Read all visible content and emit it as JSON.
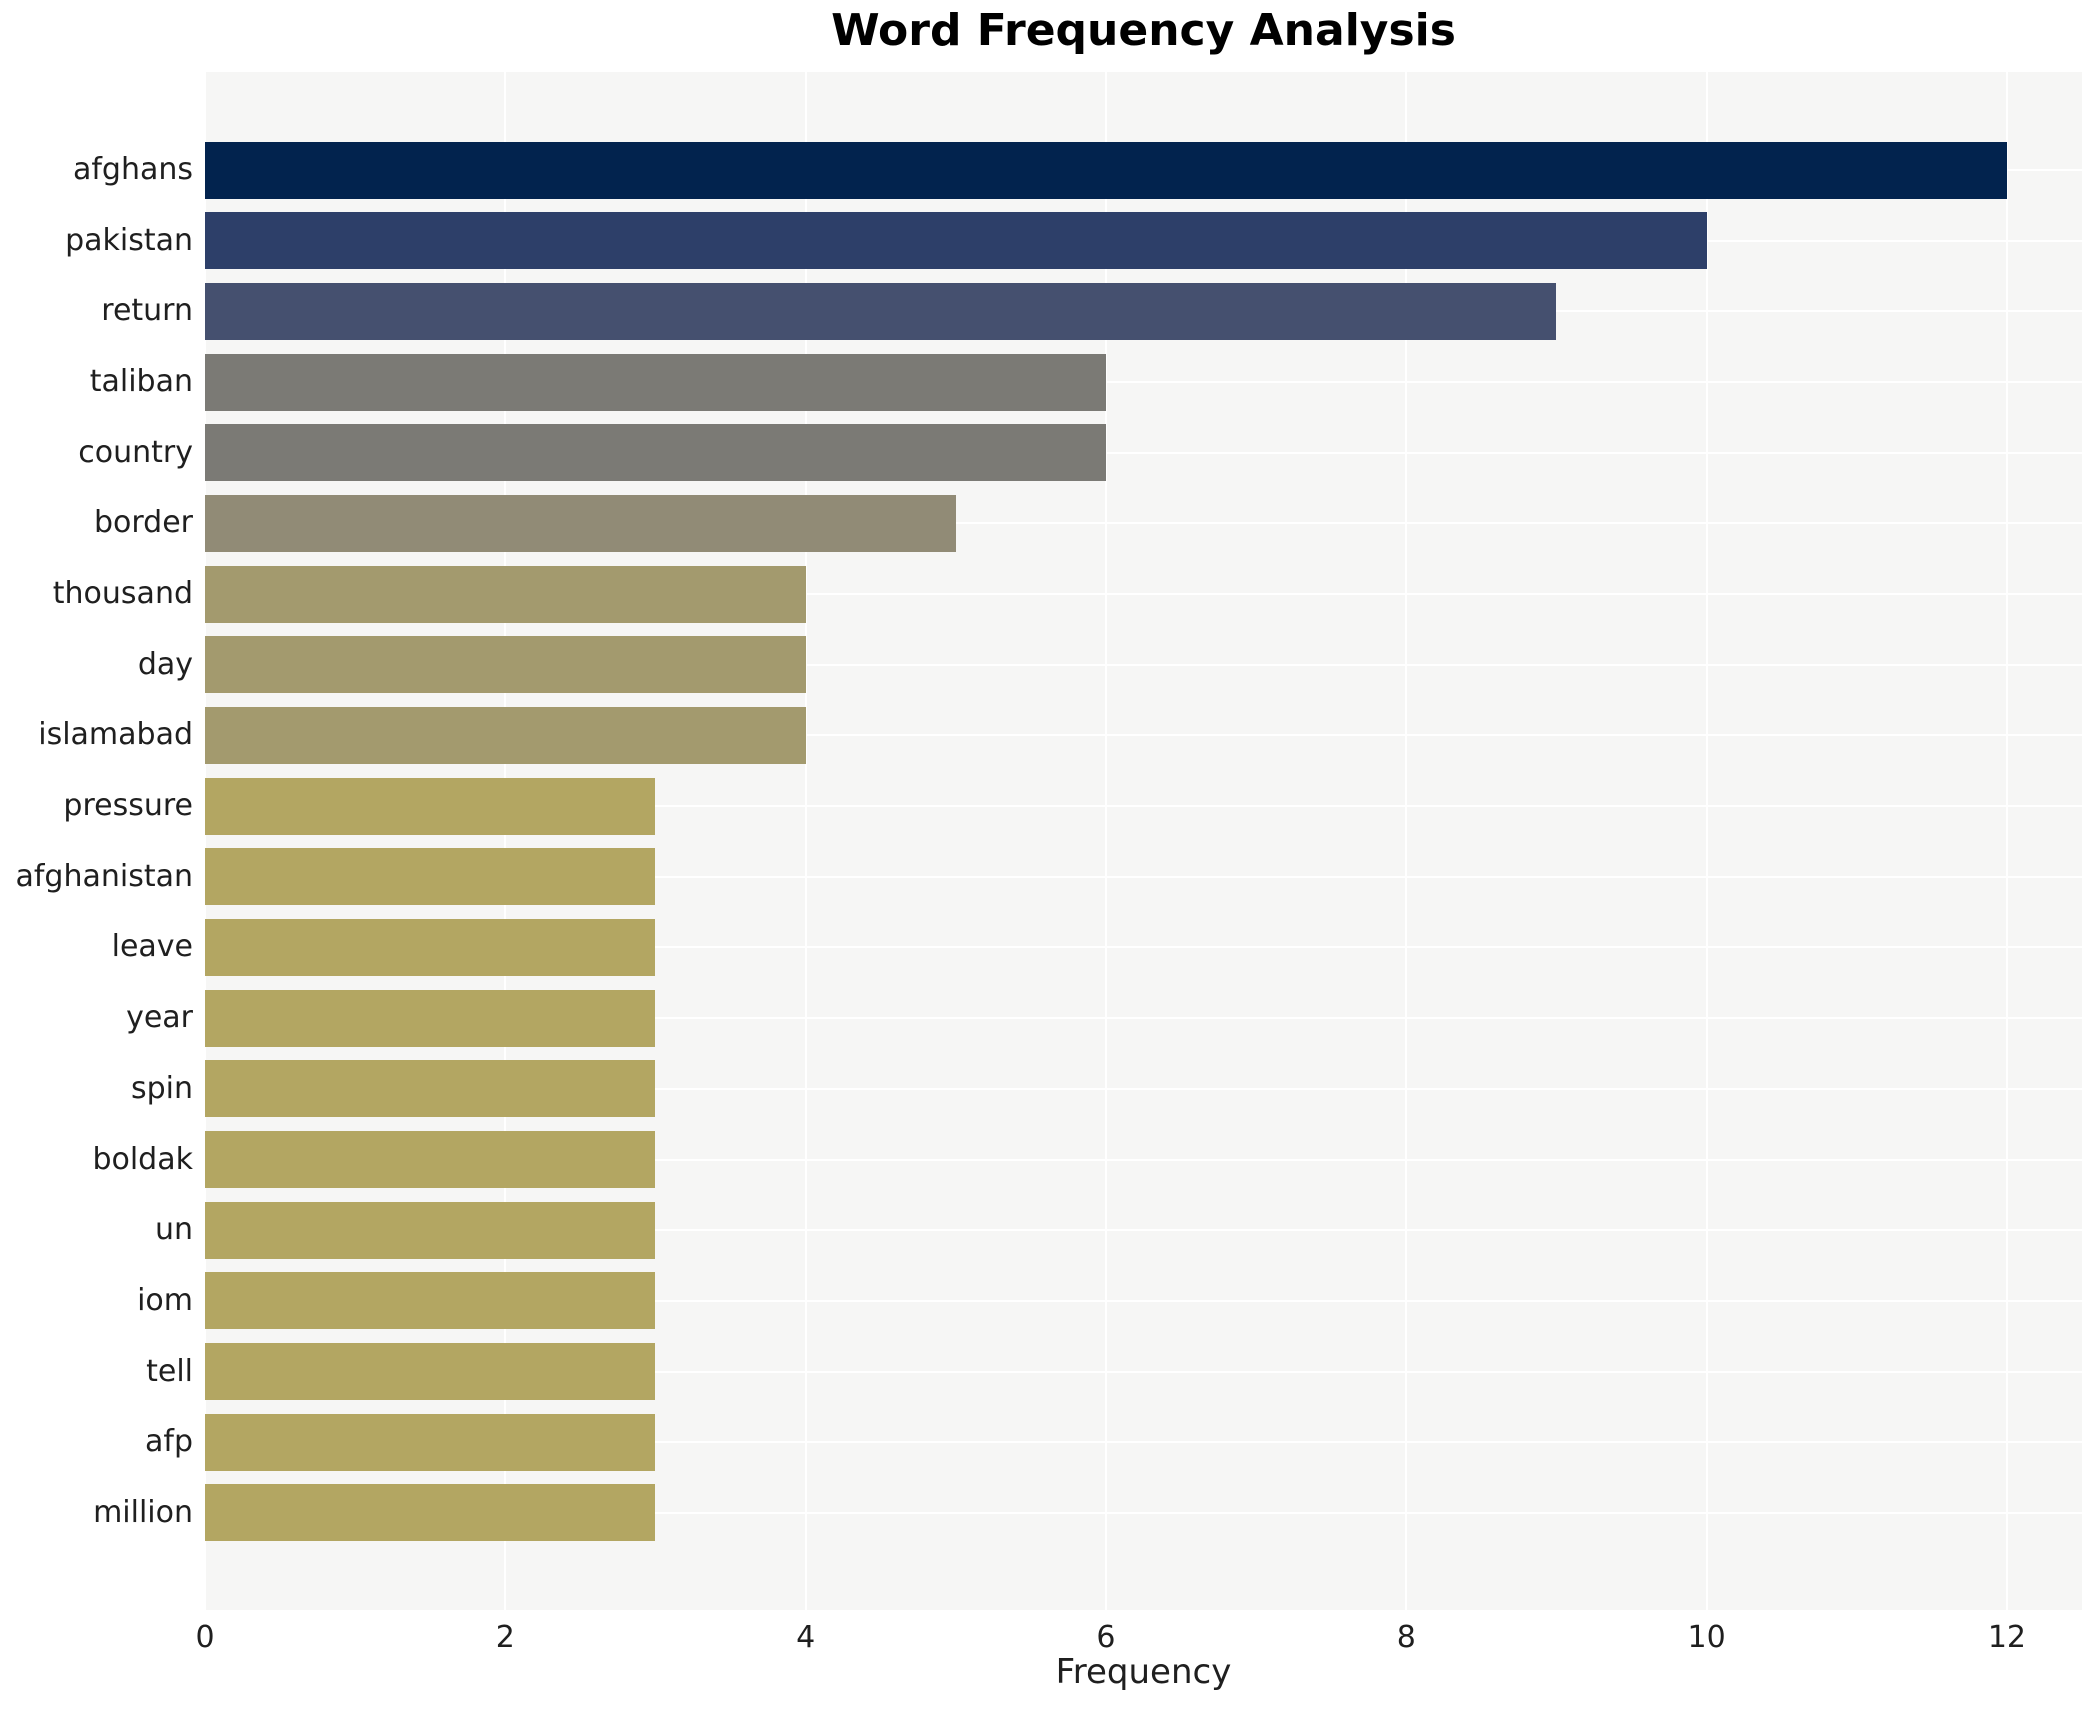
{
  "chart_data": {
    "type": "bar",
    "orientation": "horizontal",
    "title": "Word Frequency Analysis",
    "xlabel": "Frequency",
    "ylabel": "",
    "categories": [
      "afghans",
      "pakistan",
      "return",
      "taliban",
      "country",
      "border",
      "thousand",
      "day",
      "islamabad",
      "pressure",
      "afghanistan",
      "leave",
      "year",
      "spin",
      "boldak",
      "un",
      "iom",
      "tell",
      "afp",
      "million"
    ],
    "values": [
      12,
      10,
      9,
      6,
      6,
      5,
      4,
      4,
      4,
      3,
      3,
      3,
      3,
      3,
      3,
      3,
      3,
      3,
      3,
      3
    ],
    "bar_colors": [
      "#02234e",
      "#2d3f69",
      "#45506f",
      "#7b7a75",
      "#7b7a75",
      "#918b76",
      "#a39a6e",
      "#a39a6e",
      "#a39a6e",
      "#b3a662",
      "#b3a662",
      "#b3a662",
      "#b3a662",
      "#b3a662",
      "#b3a662",
      "#b3a662",
      "#b3a662",
      "#b3a662",
      "#b3a662",
      "#b3a662"
    ],
    "xlim": [
      0,
      12.5
    ],
    "xticks": [
      0,
      2,
      4,
      6,
      8,
      10,
      12
    ],
    "grid": true,
    "legend": "none",
    "plot_background": "#f6f6f5",
    "grid_color": "#ffffff"
  }
}
